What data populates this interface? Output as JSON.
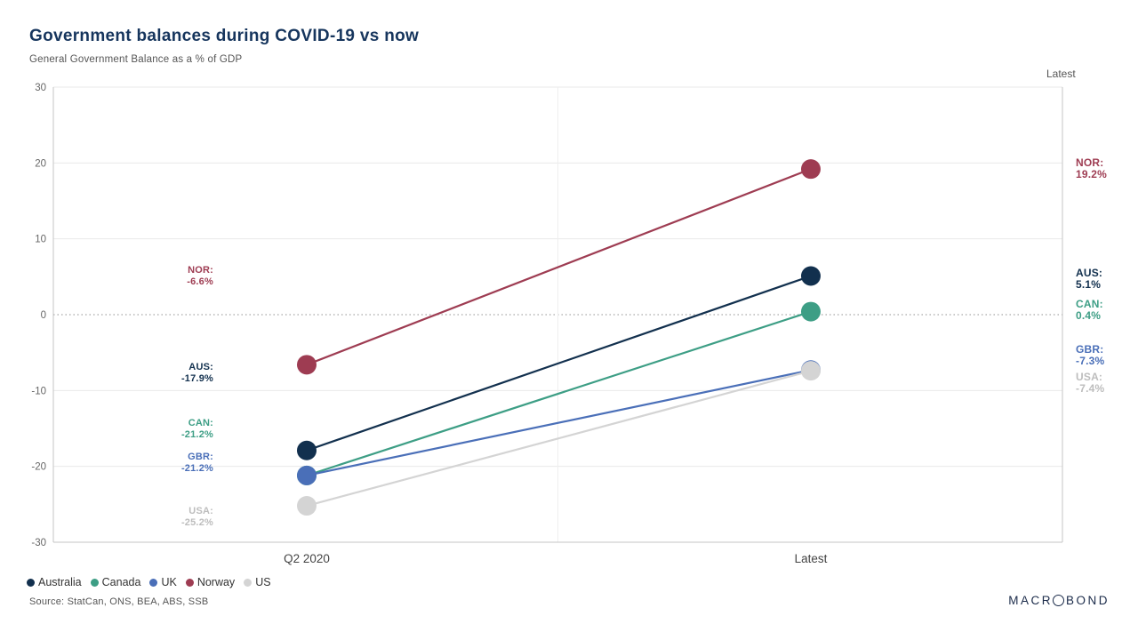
{
  "chart_data": {
    "type": "line",
    "variant": "slope",
    "title": "Government balances during COVID-19 vs now",
    "subtitle": "General Government Balance as a % of GDP",
    "right_column_header": "Latest",
    "categories": [
      "Q2 2020",
      "Latest"
    ],
    "ylim": [
      -30,
      30
    ],
    "yticks": [
      30,
      20,
      10,
      0,
      -10,
      -20,
      -30
    ],
    "zero_line": true,
    "grid": true,
    "legend_position": "bottom",
    "series": [
      {
        "name": "Australia",
        "code": "AUS",
        "color": "#12304e",
        "values": [
          -17.9,
          5.1
        ]
      },
      {
        "name": "Canada",
        "code": "CAN",
        "color": "#3d9e85",
        "values": [
          -21.2,
          0.4
        ]
      },
      {
        "name": "UK",
        "code": "GBR",
        "color": "#4a6fb8",
        "values": [
          -21.2,
          -7.3
        ]
      },
      {
        "name": "Norway",
        "code": "NOR",
        "color": "#9e3c52",
        "values": [
          -6.6,
          19.2
        ]
      },
      {
        "name": "US",
        "code": "USA",
        "color": "#d4d4d4",
        "label_color": "#bdbdbd",
        "values": [
          -25.2,
          -7.4
        ]
      }
    ]
  },
  "footer": {
    "source": "Source: StatCan, ONS, BEA, ABS, SSB",
    "logo_text_left": "MACR",
    "logo_text_right": "BOND"
  }
}
